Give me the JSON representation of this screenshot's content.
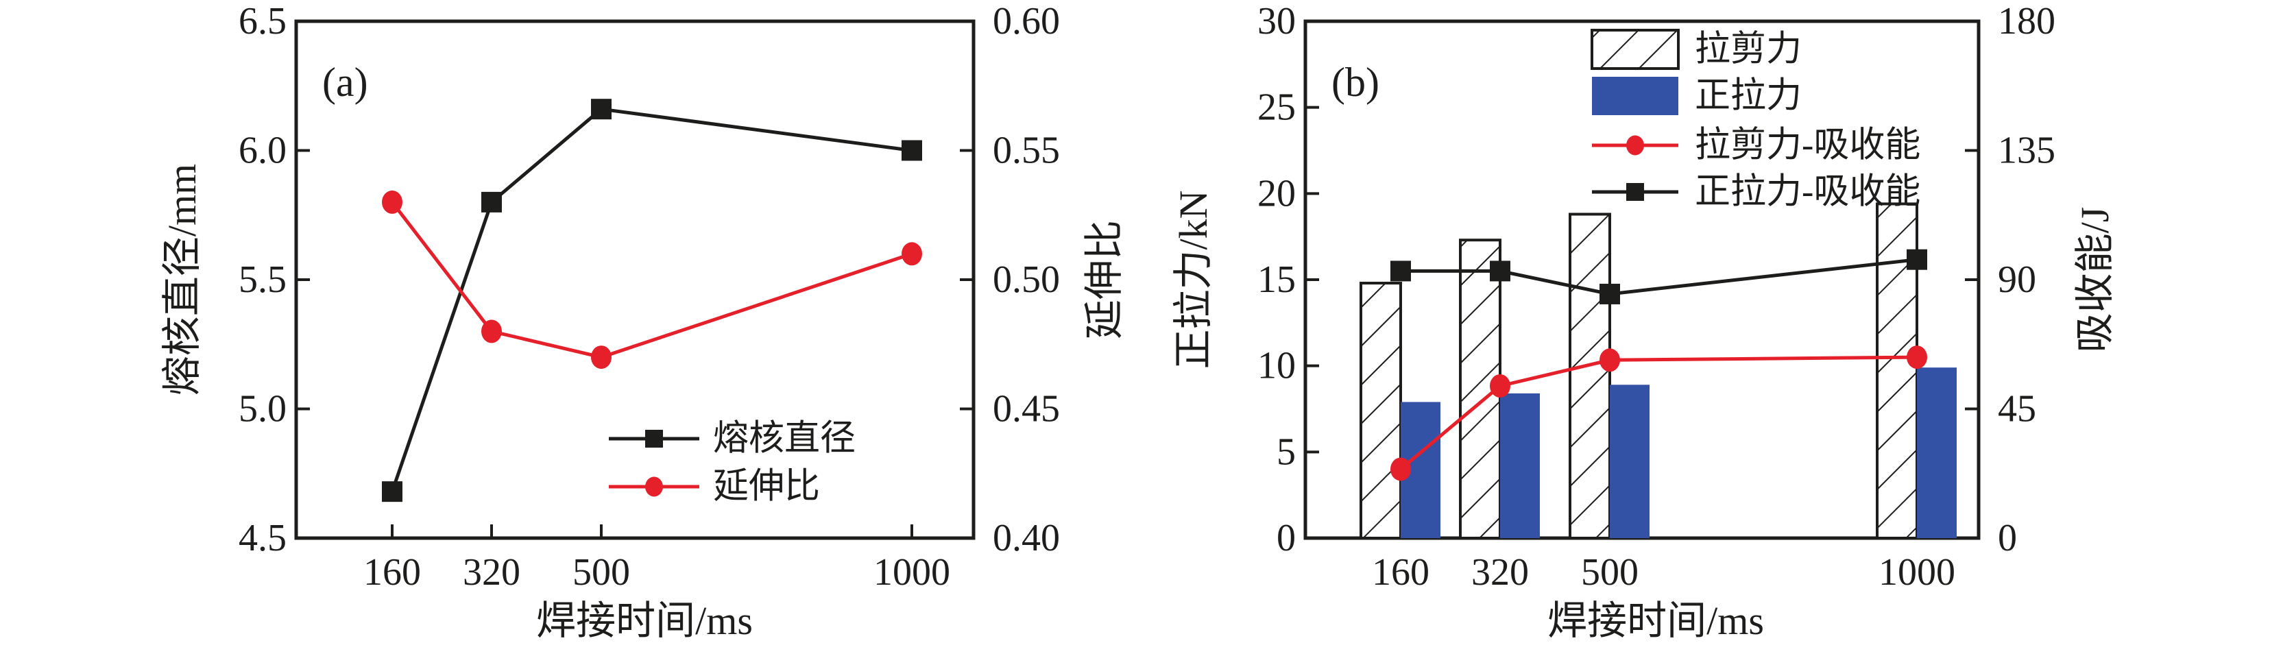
{
  "colors": {
    "black": "#1d1d1b",
    "red": "#e6202a",
    "blue": "#3352a5",
    "frame": "#1d1d1b",
    "background": "#ffffff"
  },
  "chart_data": [
    {
      "type": "line",
      "panel_label": "(a)",
      "categories": [
        "160",
        "320",
        "500",
        "1000"
      ],
      "xlabel": "焊接时间/ms",
      "left_axis": {
        "label": "熔核直径/mm",
        "ticks": [
          "6.5",
          "6.0",
          "5.5",
          "5.0",
          "4.5"
        ],
        "tick_values": [
          6.5,
          6.0,
          5.5,
          5.0,
          4.5
        ],
        "ylim": [
          4.5,
          6.5
        ]
      },
      "right_axis": {
        "label": "延伸比",
        "ticks": [
          "0.60",
          "0.55",
          "0.50",
          "0.45",
          "0.40"
        ],
        "tick_values": [
          0.6,
          0.55,
          0.5,
          0.45,
          0.4
        ],
        "ylim": [
          0.4,
          0.6
        ]
      },
      "series": [
        {
          "name": "熔核直径",
          "axis": "left",
          "marker": "square",
          "color_key": "black",
          "values": [
            4.68,
            5.8,
            6.16,
            6.0
          ]
        },
        {
          "name": "延伸比",
          "axis": "right",
          "marker": "circle",
          "color_key": "red",
          "values": [
            0.53,
            0.48,
            0.47,
            0.51
          ]
        }
      ],
      "legend_position": "inside-bottom-right",
      "grid": "off"
    },
    {
      "type": "bar",
      "panel_label": "(b)",
      "categories": [
        "160",
        "320",
        "500",
        "1000"
      ],
      "xlabel": "焊接时间/ms",
      "left_axis": {
        "label": "正拉力/kN",
        "ticks": [
          "30",
          "25",
          "20",
          "15",
          "10",
          "5",
          "0"
        ],
        "tick_values": [
          30,
          25,
          20,
          15,
          10,
          5,
          0
        ],
        "ylim": [
          0,
          30
        ]
      },
      "right_axis": {
        "label": "吸收能/J",
        "ticks": [
          "180",
          "135",
          "90",
          "45",
          "0"
        ],
        "tick_values": [
          180,
          135,
          90,
          45,
          0
        ],
        "ylim": [
          0,
          180
        ]
      },
      "bar_series": [
        {
          "name": "拉剪力",
          "style": "hatched",
          "axis": "left",
          "values": [
            14.8,
            17.3,
            18.8,
            19.4
          ]
        },
        {
          "name": "正拉力",
          "style": "solid",
          "color_key": "blue",
          "axis": "left",
          "values": [
            7.9,
            8.4,
            8.9,
            9.9
          ]
        }
      ],
      "line_series": [
        {
          "name": "拉剪力-吸收能",
          "axis": "right",
          "marker": "circle",
          "color_key": "red",
          "values": [
            24,
            53,
            62,
            63
          ]
        },
        {
          "name": "正拉力-吸收能",
          "axis": "right",
          "marker": "square",
          "color_key": "black",
          "values": [
            93,
            93,
            85,
            97
          ]
        }
      ],
      "legend_position": "inside-top-right",
      "grid": "off"
    }
  ]
}
